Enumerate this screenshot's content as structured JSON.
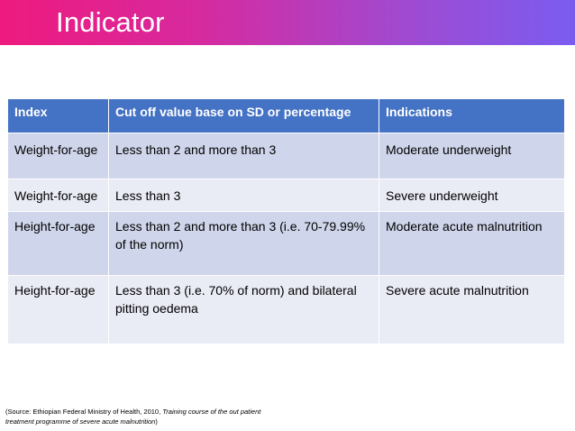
{
  "slide": {
    "title": "Indicator"
  },
  "table": {
    "headers": [
      "Index",
      "Cut off value base on SD or percentage",
      "Indications"
    ],
    "rows": [
      [
        "Weight-for-age",
        "Less than 2 and more than 3",
        "Moderate underweight"
      ],
      [
        "Weight-for-age",
        "Less than 3",
        "Severe underweight"
      ],
      [
        "Height-for-age",
        "Less than 2 and more than 3 (i.e. 70-79.99% of the norm)",
        "Moderate acute malnutrition"
      ],
      [
        "Height-for-age",
        "Less than 3 (i.e. 70% of norm) and bilateral pitting oedema",
        "Severe acute malnutrition"
      ]
    ]
  },
  "source": {
    "prefix": "(Source: Ethiopian Federal Ministry of Health, 2010, ",
    "italic": "Training course of the out patient treatment programme of severe acute malnutrition",
    "suffix": ")"
  },
  "colors": {
    "header_bg": "#4472c4",
    "row_dark": "#cfd5ea",
    "row_light": "#e9ebf5",
    "title_gradient_start": "#ee1a7e",
    "title_gradient_end": "#7a5cf0"
  }
}
